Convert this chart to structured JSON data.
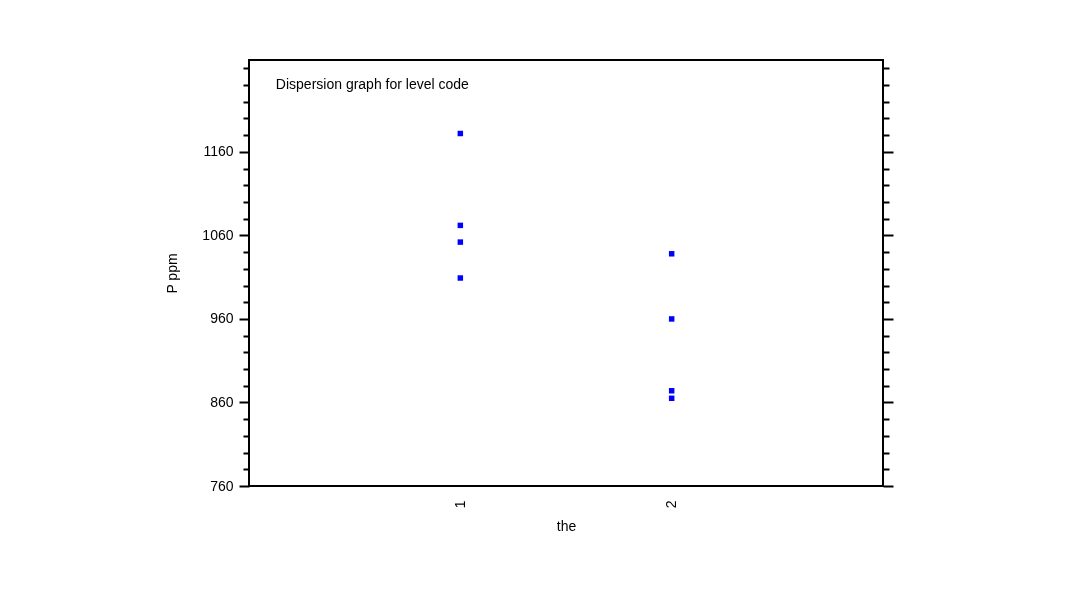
{
  "chart_data": {
    "type": "scatter",
    "title": "Dispersion graph for level code",
    "xlabel": "the",
    "ylabel": "P ppm",
    "categories": [
      "1",
      "2"
    ],
    "series": [
      {
        "color": "#0000ff",
        "x": [
          "1",
          "1",
          "1",
          "1",
          "2",
          "2",
          "2",
          "2"
        ],
        "values": [
          1182,
          1072,
          1052,
          1009,
          1038,
          960,
          874,
          865
        ]
      }
    ],
    "marker": "square",
    "grid": false,
    "ylim": [
      760,
      1270
    ],
    "yticks": [
      760,
      {
        "value": 780,
        "label": null
      },
      {
        "value": 800,
        "label": null
      },
      {
        "value": 820,
        "label": null
      },
      {
        "value": 840,
        "label": null
      },
      860,
      {
        "value": 880,
        "label": null
      },
      {
        "value": 900,
        "label": null
      },
      {
        "value": 920,
        "label": null
      },
      {
        "value": 940,
        "label": null
      },
      960,
      {
        "value": 980,
        "label": null
      },
      {
        "value": 1000,
        "label": null
      },
      {
        "value": 1020,
        "label": null
      },
      {
        "value": 1040,
        "label": null
      },
      1060,
      {
        "value": 1080,
        "label": null
      },
      {
        "value": 1100,
        "label": null
      },
      {
        "value": 1120,
        "label": null
      },
      {
        "value": 1140,
        "label": null
      },
      1160,
      {
        "value": 1180,
        "label": null
      },
      {
        "value": 1200,
        "label": null
      },
      {
        "value": 1220,
        "label": null
      },
      {
        "value": 1240,
        "label": null
      },
      {
        "value": 1260,
        "label": null
      }
    ]
  }
}
